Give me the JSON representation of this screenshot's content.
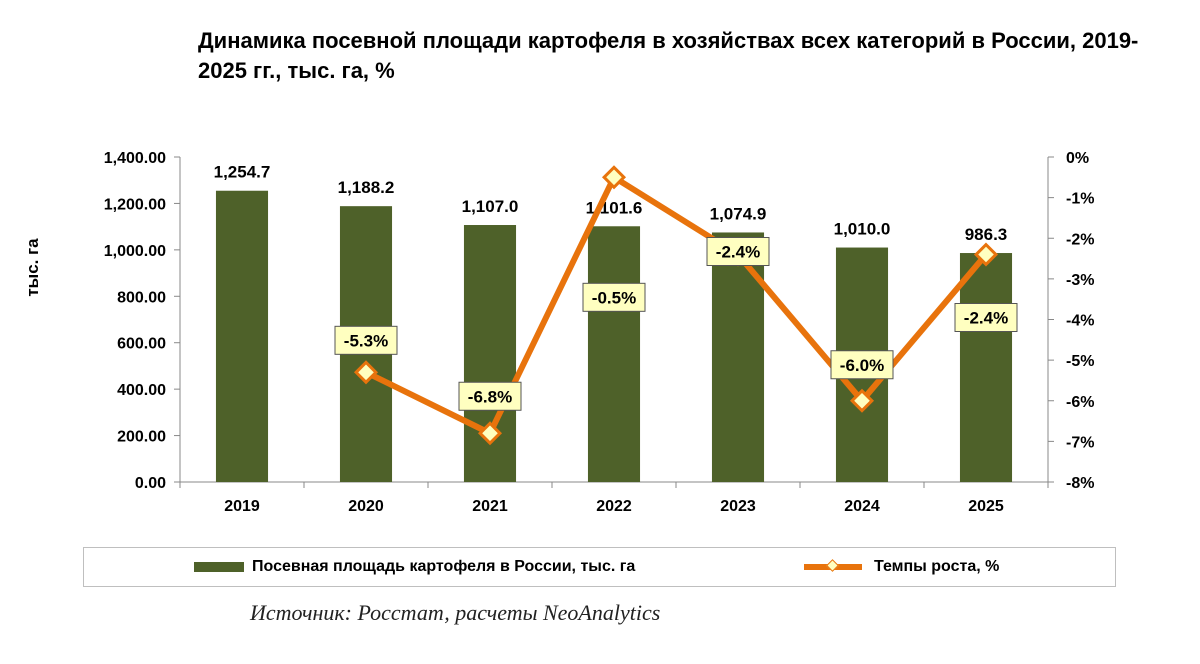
{
  "chart_data": {
    "type": "bar+line",
    "title": "Динамика посевной площади картофеля в хозяйствах всех категорий в России, 2019-2025 гг., тыс. га, %",
    "categories": [
      "2019",
      "2020",
      "2021",
      "2022",
      "2023",
      "2024",
      "2025"
    ],
    "series": [
      {
        "name": "Посевная площадь картофеля в России, тыс. га",
        "type": "bar",
        "axis": "left",
        "values": [
          1254.7,
          1188.2,
          1107.0,
          1101.6,
          1074.9,
          1010.0,
          986.3
        ],
        "labels": [
          "1,254.7",
          "1,188.2",
          "1,107.0",
          "1,101.6",
          "1,074.9",
          "1,010.0",
          "986.3"
        ]
      },
      {
        "name": "Темпы роста, %",
        "type": "line",
        "axis": "right",
        "values": [
          null,
          -5.3,
          -6.8,
          -0.5,
          -2.4,
          -6.0,
          -2.4
        ],
        "labels": [
          null,
          "-5.3%",
          "-6.8%",
          "-0.5%",
          "-2.4%",
          "-6.0%",
          "-2.4%"
        ]
      }
    ],
    "ylabel": "тыс. га",
    "ylim": [
      0,
      1400
    ],
    "yticks": [
      "0.00",
      "200.00",
      "400.00",
      "600.00",
      "800.00",
      "1,000.00",
      "1,200.00",
      "1,400.00"
    ],
    "y2lim": [
      -8,
      0
    ],
    "y2ticks": [
      "-8%",
      "-7%",
      "-6%",
      "-5%",
      "-4%",
      "-3%",
      "-2%",
      "-1%",
      "0%"
    ],
    "legend": "bottom",
    "colors": {
      "bar": "#4e6129",
      "line": "#e8730c",
      "marker_fill": "#ffffc0",
      "label_bg": "#ffffc0"
    }
  },
  "source": "Источник: Росстат, расчеты NeoAnalytics"
}
